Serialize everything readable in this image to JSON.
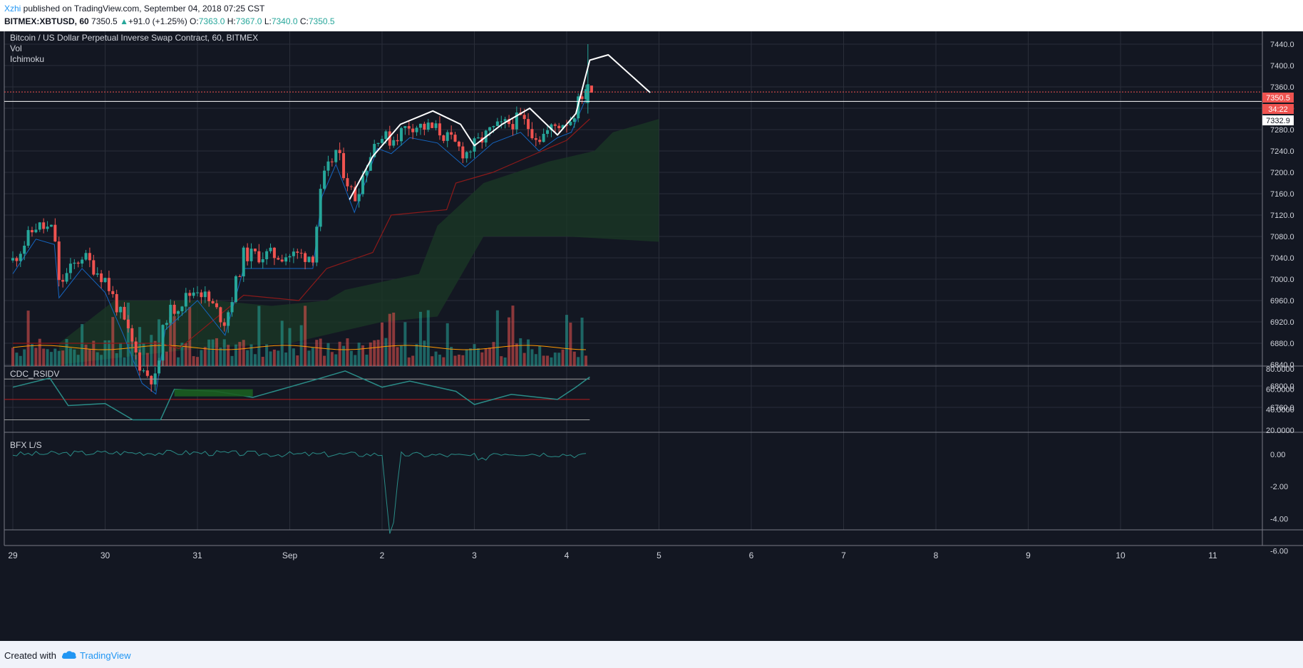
{
  "header": {
    "user": "Xzhi",
    "published_text": " published on TradingView.com, September 04, 2018 07:25 CST",
    "symbol": "BITMEX:XBTUSD, 60",
    "last": "7350.5",
    "change_arrow": "▲",
    "change": "+91.0 (+1.25%)",
    "o_label": "O:",
    "o_value": "7363.0",
    "h_label": "H:",
    "h_value": "7367.0",
    "l_label": "L:",
    "l_value": "7340.0",
    "c_label": "C:",
    "c_value": "7350.5"
  },
  "legend": {
    "title": "Bitcoin / US Dollar Perpetual Inverse Swap Contract, 60, BITMEX",
    "vol": "Vol",
    "ichimoku": "Ichimoku",
    "rsi": "CDC_RSIDV",
    "bfx": "BFX L/S"
  },
  "price_tags": {
    "last": "7350.5",
    "countdown": "34:22",
    "line": "7332.9"
  },
  "footer": {
    "created_with": "Created with",
    "brand": "TradingView"
  },
  "colors": {
    "background": "#131722",
    "grid": "#2a2e39",
    "up": "#26a69a",
    "down": "#ef5350",
    "kijun": "#8b1a1a",
    "tenkan": "#1565c0",
    "cloud": "#1b3a26",
    "volume_ma": "#ff9800",
    "rsi_line": "#2a8c87"
  },
  "chart_data": [
    {
      "type": "candlestick",
      "title": "Bitcoin / US Dollar Perpetual Inverse Swap Contract, 60, BITMEX",
      "x_tick_labels": [
        "29",
        "30",
        "31",
        "Sep",
        "2",
        "3",
        "4",
        "5",
        "6",
        "7",
        "8",
        "9",
        "10",
        "11"
      ],
      "y_tick_labels": [
        "7440.0",
        "7400.0",
        "7360.0",
        "7320.0",
        "7280.0",
        "7240.0",
        "7200.0",
        "7160.0",
        "7120.0",
        "7080.0",
        "7040.0",
        "7000.0",
        "6960.0",
        "6920.0",
        "6880.0",
        "6840.0",
        "6800.0",
        "6760.0"
      ],
      "ylim": [
        6740,
        7480
      ],
      "close_path": [
        {
          "day": 0.0,
          "price": 7035
        },
        {
          "day": 0.25,
          "price": 7100
        },
        {
          "day": 0.45,
          "price": 7090
        },
        {
          "day": 0.5,
          "price": 6990
        },
        {
          "day": 0.75,
          "price": 7045
        },
        {
          "day": 1.0,
          "price": 7000
        },
        {
          "day": 1.2,
          "price": 6920
        },
        {
          "day": 1.4,
          "price": 6830
        },
        {
          "day": 1.55,
          "price": 6810
        },
        {
          "day": 1.65,
          "price": 6930
        },
        {
          "day": 2.0,
          "price": 6985
        },
        {
          "day": 2.3,
          "price": 6920
        },
        {
          "day": 2.5,
          "price": 7045
        },
        {
          "day": 2.85,
          "price": 7045
        },
        {
          "day": 3.25,
          "price": 7045
        },
        {
          "day": 3.35,
          "price": 7180
        },
        {
          "day": 3.5,
          "price": 7240
        },
        {
          "day": 3.7,
          "price": 7150
        },
        {
          "day": 3.95,
          "price": 7270
        },
        {
          "day": 4.1,
          "price": 7260
        },
        {
          "day": 4.3,
          "price": 7290
        },
        {
          "day": 4.6,
          "price": 7280
        },
        {
          "day": 4.9,
          "price": 7235
        },
        {
          "day": 5.2,
          "price": 7280
        },
        {
          "day": 5.5,
          "price": 7300
        },
        {
          "day": 5.7,
          "price": 7265
        },
        {
          "day": 5.9,
          "price": 7290
        },
        {
          "day": 6.05,
          "price": 7300
        },
        {
          "day": 6.2,
          "price": 7360
        }
      ],
      "ichimoku": {
        "kijun_path": [
          {
            "day": 0.0,
            "price": 6880
          },
          {
            "day": 0.5,
            "price": 6880
          },
          {
            "day": 1.6,
            "price": 6880
          },
          {
            "day": 1.8,
            "price": 6870
          },
          {
            "day": 2.5,
            "price": 6970
          },
          {
            "day": 3.1,
            "price": 6960
          },
          {
            "day": 3.4,
            "price": 7020
          },
          {
            "day": 3.9,
            "price": 7050
          },
          {
            "day": 4.1,
            "price": 7120
          },
          {
            "day": 4.7,
            "price": 7130
          },
          {
            "day": 4.8,
            "price": 7180
          },
          {
            "day": 5.0,
            "price": 7190
          },
          {
            "day": 5.2,
            "price": 7200
          },
          {
            "day": 5.6,
            "price": 7230
          },
          {
            "day": 6.0,
            "price": 7260
          },
          {
            "day": 6.25,
            "price": 7300
          }
        ],
        "cloud_top_path": [
          {
            "day": 0.5,
            "price": 6880
          },
          {
            "day": 1.1,
            "price": 6960
          },
          {
            "day": 2.2,
            "price": 6960
          },
          {
            "day": 2.8,
            "price": 6950
          },
          {
            "day": 3.4,
            "price": 6960
          },
          {
            "day": 3.6,
            "price": 6980
          },
          {
            "day": 4.4,
            "price": 7010
          },
          {
            "day": 4.6,
            "price": 7100
          },
          {
            "day": 5.1,
            "price": 7180
          },
          {
            "day": 5.8,
            "price": 7220
          },
          {
            "day": 6.3,
            "price": 7240
          },
          {
            "day": 6.5,
            "price": 7275
          },
          {
            "day": 7.0,
            "price": 7300
          }
        ],
        "cloud_bottom_path": [
          {
            "day": 0.5,
            "price": 6840
          },
          {
            "day": 2.0,
            "price": 6870
          },
          {
            "day": 3.0,
            "price": 6880
          },
          {
            "day": 4.0,
            "price": 6920
          },
          {
            "day": 4.6,
            "price": 6930
          },
          {
            "day": 5.1,
            "price": 7080
          },
          {
            "day": 6.0,
            "price": 7080
          },
          {
            "day": 7.0,
            "price": 7070
          }
        ]
      },
      "drawing": {
        "type": "freehand curve",
        "path": [
          {
            "day": 3.65,
            "price": 7150
          },
          {
            "day": 3.9,
            "price": 7230
          },
          {
            "day": 4.2,
            "price": 7290
          },
          {
            "day": 4.55,
            "price": 7315
          },
          {
            "day": 4.85,
            "price": 7290
          },
          {
            "day": 5.0,
            "price": 7250
          },
          {
            "day": 5.3,
            "price": 7290
          },
          {
            "day": 5.6,
            "price": 7320
          },
          {
            "day": 5.9,
            "price": 7270
          },
          {
            "day": 6.1,
            "price": 7310
          },
          {
            "day": 6.25,
            "price": 7410
          },
          {
            "day": 6.45,
            "price": 7420
          },
          {
            "day": 6.9,
            "price": 7350
          }
        ]
      },
      "horizontal_lines": [
        7350.5,
        7332.9
      ],
      "last_price": 7350.5
    },
    {
      "type": "bar",
      "title": "Vol",
      "note": "volume histogram with moving average, no printed scale"
    },
    {
      "type": "line",
      "title": "CDC_RSIDV",
      "y_tick_labels": [
        "80.0000",
        "60.0000",
        "40.0000",
        "20.0000"
      ],
      "ylim": [
        19,
        81
      ],
      "levels": [
        70,
        50,
        30
      ],
      "path": [
        {
          "day": 0.0,
          "price": 62
        },
        {
          "day": 0.4,
          "price": 71
        },
        {
          "day": 0.6,
          "price": 44
        },
        {
          "day": 1.0,
          "price": 46
        },
        {
          "day": 1.3,
          "price": 30
        },
        {
          "day": 1.6,
          "price": 30
        },
        {
          "day": 1.75,
          "price": 60
        },
        {
          "day": 2.2,
          "price": 58
        },
        {
          "day": 2.6,
          "price": 52
        },
        {
          "day": 3.3,
          "price": 70
        },
        {
          "day": 3.6,
          "price": 78
        },
        {
          "day": 4.0,
          "price": 62
        },
        {
          "day": 4.3,
          "price": 68
        },
        {
          "day": 4.8,
          "price": 58
        },
        {
          "day": 5.0,
          "price": 45
        },
        {
          "day": 5.4,
          "price": 55
        },
        {
          "day": 5.7,
          "price": 52
        },
        {
          "day": 5.9,
          "price": 50
        },
        {
          "day": 6.1,
          "price": 62
        },
        {
          "day": 6.25,
          "price": 72
        }
      ]
    },
    {
      "type": "line",
      "title": "BFX L/S",
      "y_tick_labels": [
        "0.00",
        "-2.00",
        "-4.00",
        "-6.00"
      ],
      "ylim": [
        -6.2,
        0.6
      ],
      "path": [
        {
          "day": 0.0,
          "price": 0.0
        },
        {
          "day": 1.0,
          "price": 0.1
        },
        {
          "day": 2.0,
          "price": 0.1
        },
        {
          "day": 3.0,
          "price": 0.0
        },
        {
          "day": 4.0,
          "price": 0.0
        },
        {
          "day": 4.1,
          "price": -5.8
        },
        {
          "day": 4.2,
          "price": 0.0
        },
        {
          "day": 5.0,
          "price": -0.1
        },
        {
          "day": 5.05,
          "price": -0.5
        },
        {
          "day": 5.2,
          "price": 0.1
        },
        {
          "day": 6.0,
          "price": 0.0
        },
        {
          "day": 6.25,
          "price": -0.1
        }
      ]
    }
  ]
}
